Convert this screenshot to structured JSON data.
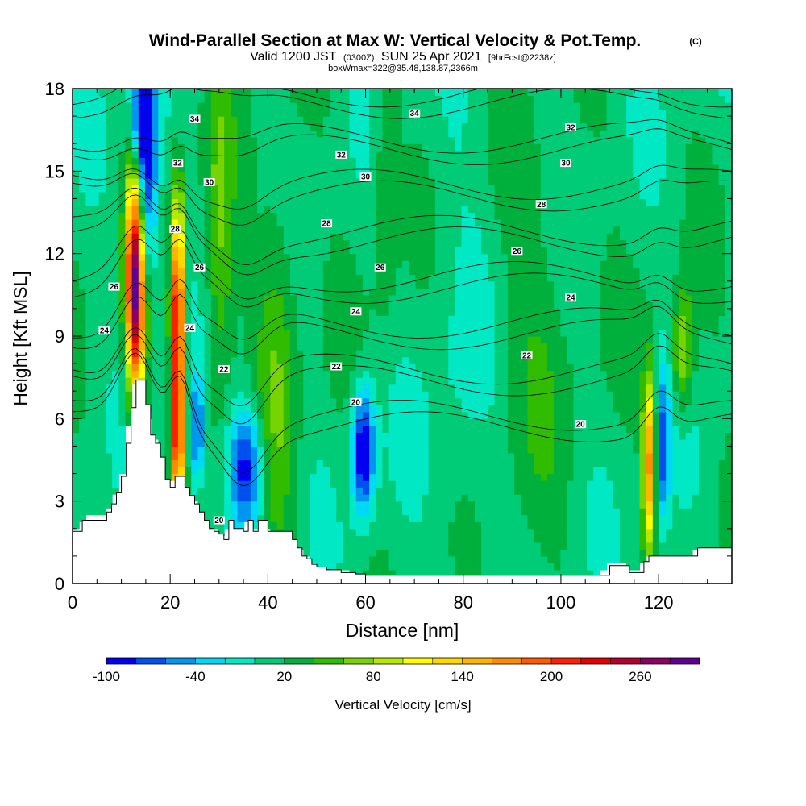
{
  "chart_data": {
    "type": "heatmap",
    "title": {
      "main": "Wind-Parallel Section at Max W: Vertical Velocity & Pot.Temp.",
      "copyright": "(C)",
      "valid_prefix": "Valid 1200 JST",
      "valid_zulu": "(0300Z)",
      "valid_date": "SUN 25 Apr 2021",
      "forecast": "[9hrFcst@2238z]",
      "box": "boxWmax=322@35.48,138.87,2366m"
    },
    "xlabel": "Distance [nm]",
    "ylabel": "Height [Kft MSL]",
    "xlim": [
      0,
      135
    ],
    "ylim": [
      0,
      18
    ],
    "x_ticks": [
      "0",
      "20",
      "40",
      "60",
      "80",
      "100",
      "120"
    ],
    "y_ticks": [
      "0",
      "3",
      "6",
      "9",
      "12",
      "15",
      "18"
    ],
    "colorbar": {
      "label": "Vertical Velocity [cm/s]",
      "tick_labels": [
        "-100",
        "-40",
        "20",
        "80",
        "140",
        "200",
        "260"
      ],
      "tick_values": [
        -100,
        -40,
        20,
        80,
        140,
        200,
        260
      ],
      "min": -100,
      "step": 20,
      "colors": [
        "#0000ee",
        "#0050ee",
        "#0096f0",
        "#00d8f8",
        "#00e8c4",
        "#00cc78",
        "#00b03c",
        "#30bc00",
        "#78d400",
        "#b8e800",
        "#ffff00",
        "#ffd800",
        "#ffb400",
        "#ff8c00",
        "#ff5a00",
        "#ff2000",
        "#e00000",
        "#b40030",
        "#8c0064",
        "#600090"
      ]
    },
    "terrain_profile": {
      "x": [
        0,
        2,
        7,
        8,
        9,
        10,
        11,
        12,
        13,
        14,
        15,
        16,
        17,
        18,
        19,
        20,
        21,
        22,
        23,
        24,
        25,
        26,
        27,
        28,
        29,
        30,
        31,
        32,
        33,
        35,
        36,
        37,
        38,
        40,
        45,
        46,
        47,
        48,
        49,
        50,
        52,
        55,
        58,
        60,
        65,
        80,
        100,
        108,
        110,
        113,
        114,
        116,
        117,
        118,
        120,
        125,
        128,
        130,
        135
      ],
      "height_kft": [
        1.9,
        2.3,
        2.6,
        2.9,
        3.3,
        3.9,
        5.1,
        6.4,
        7.4,
        7.4,
        6.5,
        5.4,
        5.1,
        4.6,
        3.8,
        3.5,
        3.9,
        3.9,
        3.5,
        3.2,
        2.9,
        2.6,
        2.3,
        2.0,
        1.9,
        1.8,
        1.6,
        2.3,
        2.0,
        1.9,
        2.3,
        1.9,
        2.3,
        1.9,
        1.6,
        1.3,
        1.0,
        0.9,
        0.7,
        0.6,
        0.5,
        0.4,
        0.35,
        0.3,
        0.3,
        0.3,
        0.3,
        0.3,
        0.65,
        0.65,
        0.4,
        0.4,
        0.8,
        1.0,
        1.0,
        1.0,
        1.3,
        1.3,
        1.3
      ]
    },
    "velocity_features": [
      {
        "x": 13,
        "z": 10,
        "sx": 1.4,
        "sz": 2.6,
        "amp": 210
      },
      {
        "x": 12.5,
        "z": 12.5,
        "sx": 1.2,
        "sz": 2.5,
        "amp": 120
      },
      {
        "x": 21.5,
        "z": 9.5,
        "sx": 0.9,
        "sz": 3.0,
        "amp": 240
      },
      {
        "x": 21.5,
        "z": 5,
        "sx": 0.8,
        "sz": 1.6,
        "amp": 150
      },
      {
        "x": 15,
        "z": 15,
        "sx": 1.8,
        "sz": 3.0,
        "amp": -110
      },
      {
        "x": 14,
        "z": 17,
        "sx": 1.5,
        "sz": 1.4,
        "amp": -80
      },
      {
        "x": 35.5,
        "z": 4.2,
        "sx": 2.6,
        "sz": 1.6,
        "amp": -110
      },
      {
        "x": 25.5,
        "z": 5.5,
        "sx": 1.0,
        "sz": 1.5,
        "amp": -80
      },
      {
        "x": 59.5,
        "z": 4.8,
        "sx": 1.6,
        "sz": 1.6,
        "amp": -125
      },
      {
        "x": 118,
        "z": 4.4,
        "sx": 0.9,
        "sz": 2.2,
        "amp": 150
      },
      {
        "x": 121,
        "z": 5,
        "sx": 0.9,
        "sz": 2.0,
        "amp": -80
      },
      {
        "x": 125,
        "z": 8.5,
        "sx": 1.5,
        "sz": 1.5,
        "amp": 75
      },
      {
        "x": 42,
        "z": 8,
        "sx": 3.0,
        "sz": 5.0,
        "amp": 45
      },
      {
        "x": 30,
        "z": 12,
        "sx": 2.0,
        "sz": 5.0,
        "amp": 50
      },
      {
        "x": 95,
        "z": 9,
        "sx": 6.0,
        "sz": 5.0,
        "amp": 20
      },
      {
        "x": 78,
        "z": 8,
        "sx": 5.0,
        "sz": 6.0,
        "amp": -15
      },
      {
        "x": 64,
        "z": 15,
        "sx": 2.0,
        "sz": 4.0,
        "amp": 30
      }
    ],
    "isentropes": {
      "levels": [
        20,
        22,
        24,
        26,
        28,
        30,
        32,
        34
      ],
      "labels": [
        {
          "text": "20",
          "x": 58,
          "z": 6.6
        },
        {
          "text": "20",
          "x": 104,
          "z": 5.8
        },
        {
          "text": "20",
          "x": 30,
          "z": 2.3
        },
        {
          "text": "22",
          "x": 31,
          "z": 7.8
        },
        {
          "text": "22",
          "x": 54,
          "z": 7.9
        },
        {
          "text": "22",
          "x": 93,
          "z": 8.3
        },
        {
          "text": "24",
          "x": 6.5,
          "z": 9.2
        },
        {
          "text": "24",
          "x": 24,
          "z": 9.3
        },
        {
          "text": "24",
          "x": 58,
          "z": 9.9
        },
        {
          "text": "24",
          "x": 102,
          "z": 10.4
        },
        {
          "text": "26",
          "x": 8.5,
          "z": 10.8
        },
        {
          "text": "26",
          "x": 26,
          "z": 11.5
        },
        {
          "text": "26",
          "x": 63,
          "z": 11.5
        },
        {
          "text": "26",
          "x": 91,
          "z": 12.1
        },
        {
          "text": "28",
          "x": 21,
          "z": 12.9
        },
        {
          "text": "28",
          "x": 52,
          "z": 13.1
        },
        {
          "text": "28",
          "x": 96,
          "z": 13.8
        },
        {
          "text": "30",
          "x": 28,
          "z": 14.6
        },
        {
          "text": "30",
          "x": 60,
          "z": 14.8
        },
        {
          "text": "30",
          "x": 101,
          "z": 15.3
        },
        {
          "text": "32",
          "x": 21.5,
          "z": 15.3
        },
        {
          "text": "32",
          "x": 55,
          "z": 15.6
        },
        {
          "text": "32",
          "x": 102,
          "z": 16.6
        },
        {
          "text": "34",
          "x": 25,
          "z": 16.9
        },
        {
          "text": "34",
          "x": 70,
          "z": 17.1
        }
      ]
    }
  }
}
